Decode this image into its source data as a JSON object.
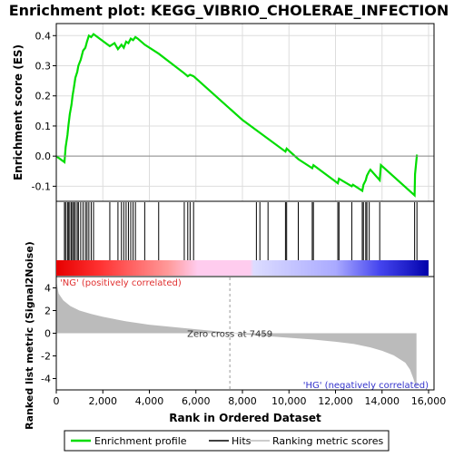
{
  "chart_data": {
    "type": "line",
    "title": "Enrichment plot: KEGG_VIBRIO_CHOLERAE_INFECTION",
    "colors": {
      "enrichment_line": "#00dd00",
      "hits": "#000000",
      "metric_fill": "#bbbbbb",
      "pos_label": "#e03030",
      "neg_label": "#3333cc",
      "frame": "#000000",
      "grid": "#aaaaaa"
    },
    "es_panel": {
      "ylabel": "Enrichment score (ES)",
      "ylim": [
        -0.15,
        0.44
      ],
      "yticks": [
        -0.1,
        0.0,
        0.1,
        0.2,
        0.3,
        0.4
      ],
      "ytick_labels": [
        "-0.1",
        "0.0",
        "0.1",
        "0.2",
        "0.3",
        "0.4"
      ],
      "grid": true,
      "series_name": "Enrichment profile",
      "x": [
        0,
        350,
        400,
        480,
        520,
        580,
        650,
        700,
        760,
        820,
        900,
        950,
        1050,
        1150,
        1250,
        1320,
        1400,
        1500,
        1600,
        2300,
        2500,
        2650,
        2800,
        2900,
        3000,
        3100,
        3200,
        3300,
        3400,
        3500,
        3800,
        4400,
        5500,
        5650,
        5750,
        5900,
        8000,
        9850,
        9900,
        10400,
        11000,
        11050,
        12100,
        12150,
        12700,
        12750,
        13150,
        13200,
        13300,
        13350,
        13450,
        13500,
        13900,
        13950,
        15400,
        15420,
        15500
      ],
      "y": [
        0.0,
        -0.02,
        0.03,
        0.07,
        0.1,
        0.14,
        0.17,
        0.2,
        0.23,
        0.26,
        0.28,
        0.3,
        0.32,
        0.35,
        0.36,
        0.38,
        0.4,
        0.395,
        0.405,
        0.365,
        0.375,
        0.355,
        0.37,
        0.36,
        0.38,
        0.375,
        0.39,
        0.385,
        0.395,
        0.39,
        0.37,
        0.34,
        0.275,
        0.265,
        0.27,
        0.265,
        0.12,
        0.015,
        0.025,
        -0.01,
        -0.04,
        -0.03,
        -0.09,
        -0.075,
        -0.1,
        -0.095,
        -0.115,
        -0.095,
        -0.08,
        -0.065,
        -0.05,
        -0.045,
        -0.08,
        -0.03,
        -0.13,
        -0.06,
        0.005
      ]
    },
    "hits": [
      350,
      400,
      480,
      520,
      580,
      650,
      700,
      760,
      820,
      900,
      950,
      1050,
      1150,
      1250,
      1320,
      1400,
      1500,
      1600,
      2300,
      2650,
      2800,
      2900,
      3000,
      3100,
      3200,
      3300,
      3400,
      3800,
      4400,
      5500,
      5650,
      5750,
      5900,
      8600,
      8750,
      9100,
      9850,
      9900,
      10400,
      11000,
      11050,
      12100,
      12150,
      12700,
      13150,
      13200,
      13300,
      13350,
      13450,
      13900,
      15400,
      15500
    ],
    "heatbar": {
      "labels": {
        "positive": "'NG' (positively correlated)",
        "negative": "'HG' (negatively correlated)"
      },
      "stops": [
        {
          "at": 0.0,
          "color": "#e60000"
        },
        {
          "at": 0.12,
          "color": "#ff3333"
        },
        {
          "at": 0.3,
          "color": "#ff9999"
        },
        {
          "at": 0.38,
          "color": "#ffccee"
        },
        {
          "at": 0.52,
          "color": "#ffccee"
        },
        {
          "at": 0.53,
          "color": "#dcdcff"
        },
        {
          "at": 0.75,
          "color": "#aaaaff"
        },
        {
          "at": 0.87,
          "color": "#4444ee"
        },
        {
          "at": 0.94,
          "color": "#2222cc"
        },
        {
          "at": 1.0,
          "color": "#0000aa"
        }
      ]
    },
    "metric_panel": {
      "ylabel": "Ranked list metric (Signal2Noise)",
      "ylim": [
        -5,
        5
      ],
      "yticks": [
        -4,
        -2,
        0,
        2,
        4
      ],
      "ytick_labels": [
        "-4",
        "-2",
        "0",
        "2",
        "4"
      ],
      "zero_cross": 7459,
      "zero_cross_label": "Zero cross at 7459",
      "x": [
        0,
        100,
        300,
        600,
        1000,
        1500,
        2000,
        3000,
        4000,
        5000,
        6000,
        7000,
        7459,
        8000,
        9000,
        10000,
        11000,
        12000,
        12800,
        13500,
        14000,
        14500,
        15000,
        15200,
        15350,
        15480
      ],
      "y": [
        4.6,
        3.5,
        2.9,
        2.4,
        2.0,
        1.7,
        1.45,
        1.05,
        0.75,
        0.55,
        0.35,
        0.15,
        0.0,
        -0.1,
        -0.25,
        -0.4,
        -0.55,
        -0.75,
        -0.95,
        -1.25,
        -1.55,
        -1.95,
        -2.6,
        -3.2,
        -4.0,
        -4.9
      ]
    },
    "xaxis": {
      "xlabel": "Rank in Ordered Dataset",
      "xlim": [
        0,
        16000
      ],
      "xticks": [
        0,
        2000,
        4000,
        6000,
        8000,
        10000,
        12000,
        14000,
        16000
      ],
      "xtick_labels": [
        "0",
        "2,000",
        "4,000",
        "6,000",
        "8,000",
        "10,000",
        "12,000",
        "14,000",
        "16,000"
      ]
    },
    "legend": {
      "placement": "bottom",
      "entries": [
        {
          "label": "Enrichment profile",
          "color": "#00dd00"
        },
        {
          "label": "Hits",
          "color": "#000000"
        },
        {
          "label": "Ranking metric scores",
          "color": "#bbbbbb"
        }
      ]
    }
  }
}
